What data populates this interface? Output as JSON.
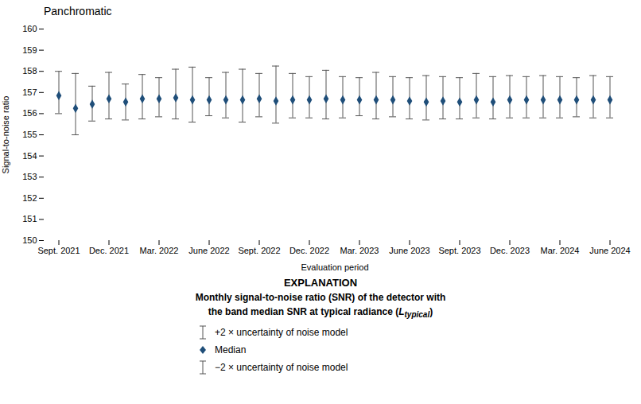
{
  "chart_data": {
    "type": "errorbar",
    "title": "Panchromatic",
    "xlabel": "Evaluation period",
    "ylabel": "Signal-to-noise ratio",
    "categories": [
      "Sept. 2021",
      null,
      null,
      "Dec. 2021",
      null,
      null,
      "Mar. 2022",
      null,
      null,
      "June 2022",
      null,
      null,
      "Sept. 2022",
      null,
      null,
      "Dec. 2022",
      null,
      null,
      "Mar. 2023",
      null,
      null,
      "June 2023",
      null,
      null,
      "Sept. 2023",
      null,
      null,
      "Dec. 2023",
      null,
      null,
      "Mar. 2024",
      null,
      null,
      "June 2024"
    ],
    "series": [
      {
        "name": "Median",
        "color": "#1F4E79",
        "marker": "diamond",
        "values": [
          156.85,
          156.25,
          156.45,
          156.7,
          156.55,
          156.7,
          156.7,
          156.75,
          156.65,
          156.65,
          156.65,
          156.65,
          156.7,
          156.6,
          156.65,
          156.65,
          156.7,
          156.65,
          156.65,
          156.65,
          156.65,
          156.6,
          156.55,
          156.6,
          156.55,
          156.65,
          156.55,
          156.65,
          156.65,
          156.65,
          156.65,
          156.65,
          156.65,
          156.65
        ],
        "upper_errors": [
          1.15,
          1.65,
          0.85,
          1.25,
          0.85,
          1.15,
          1.0,
          1.35,
          1.55,
          1.05,
          1.3,
          1.45,
          1.2,
          1.65,
          1.25,
          1.1,
          1.35,
          1.1,
          1.05,
          1.3,
          1.1,
          1.1,
          1.25,
          1.15,
          1.15,
          1.25,
          1.2,
          1.15,
          1.1,
          1.15,
          1.1,
          1.05,
          1.15,
          1.1
        ],
        "lower_errors": [
          0.85,
          1.25,
          0.8,
          0.95,
          0.85,
          0.95,
          0.85,
          1.0,
          1.05,
          0.75,
          0.85,
          1.05,
          0.85,
          1.05,
          0.85,
          0.85,
          0.95,
          0.85,
          0.75,
          0.9,
          0.8,
          0.85,
          0.85,
          0.85,
          0.8,
          0.85,
          0.8,
          0.85,
          0.85,
          0.85,
          0.85,
          0.8,
          0.85,
          0.85
        ],
        "errorbar_color": "#555555"
      }
    ],
    "ylim": [
      150,
      160
    ],
    "yticks": [
      150,
      151,
      152,
      153,
      154,
      155,
      156,
      157,
      158,
      159,
      160
    ],
    "grid": false,
    "explanation": {
      "title": "EXPLANATION",
      "lines": [
        [
          "Monthly signal-to-noise ratio (SNR) of the detector with"
        ],
        [
          "the band median SNR at typical radiance (",
          {
            "text": "L",
            "subscript": "typical"
          },
          ")"
        ]
      ],
      "upper_error_label": "+2 × uncertainty of noise model",
      "lower_error_label": "−2 × uncertainty of noise model"
    }
  }
}
